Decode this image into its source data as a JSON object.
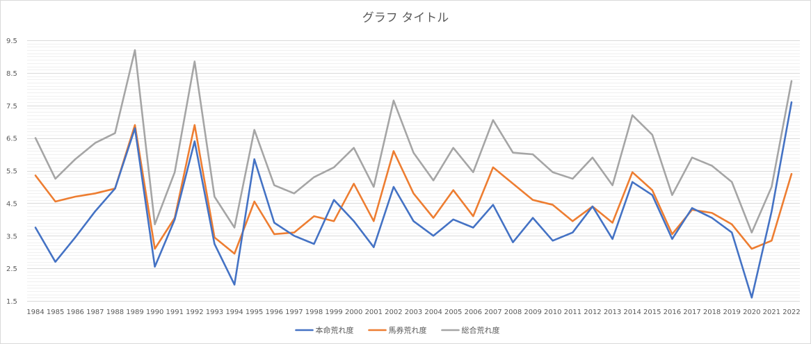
{
  "chart_data": {
    "type": "line",
    "title": "グラフ タイトル",
    "xlabel": "",
    "ylabel": "",
    "ylim": [
      1.5,
      9.5
    ],
    "y_ticks": [
      "9.5",
      "8.5",
      "7.5",
      "6.5",
      "5.5",
      "4.5",
      "3.5",
      "2.5",
      "1.5"
    ],
    "grid": "horizontal minor and major",
    "legend_position": "bottom",
    "categories": [
      "1984",
      "1985",
      "1986",
      "1987",
      "1988",
      "1989",
      "1990",
      "1991",
      "1992",
      "1993",
      "1994",
      "1995",
      "1996",
      "1997",
      "1998",
      "1999",
      "2000",
      "2001",
      "2002",
      "2003",
      "2004",
      "2005",
      "2006",
      "2007",
      "2008",
      "2009",
      "2010",
      "2011",
      "2012",
      "2013",
      "2014",
      "2015",
      "2016",
      "2017",
      "2018",
      "2019",
      "2020",
      "2021",
      "2022"
    ],
    "series": [
      {
        "name": "本命荒れ度",
        "color": "#4472c4",
        "values": [
          3.75,
          2.7,
          3.45,
          4.25,
          4.95,
          6.8,
          2.55,
          4.0,
          6.4,
          3.25,
          2.0,
          5.85,
          3.9,
          3.5,
          3.25,
          4.6,
          3.95,
          3.15,
          5.0,
          3.95,
          3.5,
          4.0,
          3.75,
          4.45,
          3.3,
          4.05,
          3.35,
          3.6,
          4.4,
          3.4,
          5.15,
          4.75,
          3.4,
          4.35,
          4.05,
          3.6,
          1.6,
          4.25,
          7.6
        ]
      },
      {
        "name": "馬券荒れ度",
        "color": "#ed7d31",
        "values": [
          5.35,
          4.55,
          4.7,
          4.8,
          4.95,
          6.9,
          3.1,
          4.05,
          6.9,
          3.45,
          2.95,
          4.55,
          3.55,
          3.6,
          4.1,
          3.95,
          5.1,
          3.95,
          6.1,
          4.8,
          4.05,
          4.9,
          4.1,
          5.6,
          5.1,
          4.6,
          4.45,
          3.95,
          4.4,
          3.9,
          5.45,
          4.9,
          3.55,
          4.3,
          4.2,
          3.85,
          3.1,
          3.35,
          5.4
        ]
      },
      {
        "name": "総合荒れ度",
        "color": "#a5a5a5",
        "values": [
          6.5,
          5.25,
          5.85,
          6.35,
          6.65,
          9.2,
          3.85,
          5.45,
          8.85,
          4.7,
          3.75,
          6.75,
          5.05,
          4.8,
          5.3,
          5.6,
          6.2,
          5.0,
          7.65,
          6.05,
          5.2,
          6.2,
          5.45,
          7.05,
          6.05,
          6.0,
          5.45,
          5.25,
          5.9,
          5.05,
          7.2,
          6.6,
          4.75,
          5.9,
          5.65,
          5.15,
          3.6,
          5.0,
          8.25
        ]
      }
    ]
  }
}
